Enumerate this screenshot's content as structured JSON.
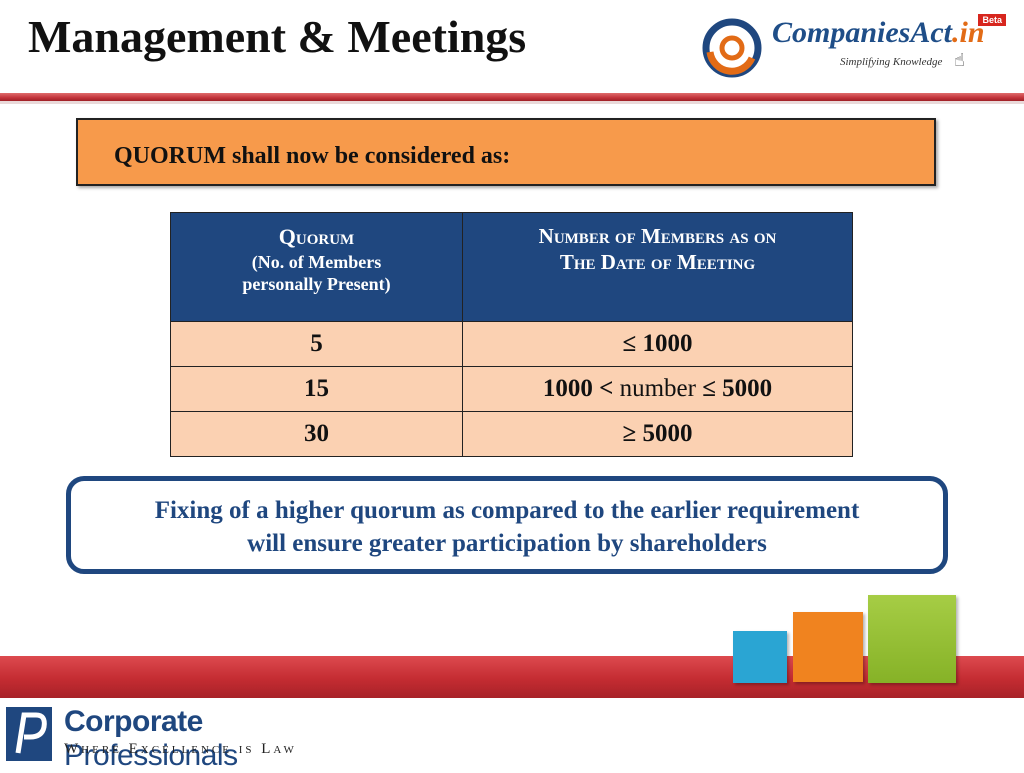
{
  "header": {
    "title": "Management & Meetings",
    "brand_logo": {
      "name_main": "CompaniesAct",
      "name_suffix": ".in",
      "tagline": "Simplifying Knowledge",
      "badge": "Beta"
    }
  },
  "banner": {
    "text": "QUORUM shall now be considered as:"
  },
  "quorum_table": {
    "headers": {
      "col1_title": "Quorum",
      "col1_sub1": "(No. of Members",
      "col1_sub2": "personally Present)",
      "col2_line1": "Number of Members as on",
      "col2_line2": "The Date of Meeting"
    },
    "rows": [
      {
        "quorum": "5",
        "members": "≤ 1000"
      },
      {
        "quorum": "15",
        "members_pre": "1000 <",
        "members_word": "number",
        "members_post": "≤ 5000"
      },
      {
        "quorum": "30",
        "members": "≥ 5000"
      }
    ]
  },
  "note": {
    "line1": "Fixing of a higher quorum as compared to the earlier requirement",
    "line2": "will ensure greater participation by shareholders"
  },
  "footer_logo": {
    "name_bold": "Corporate",
    "name_rest": " Professionals",
    "tagline": "Where Excellence is Law"
  },
  "colors": {
    "accent_red": "#c42c32",
    "table_header": "#1f477f",
    "table_cell": "#fbd1b2",
    "banner": "#f79a4b",
    "deco_blue": "#2aa5d3",
    "deco_orange": "#f0831f",
    "deco_green": "#8fbc2f"
  }
}
